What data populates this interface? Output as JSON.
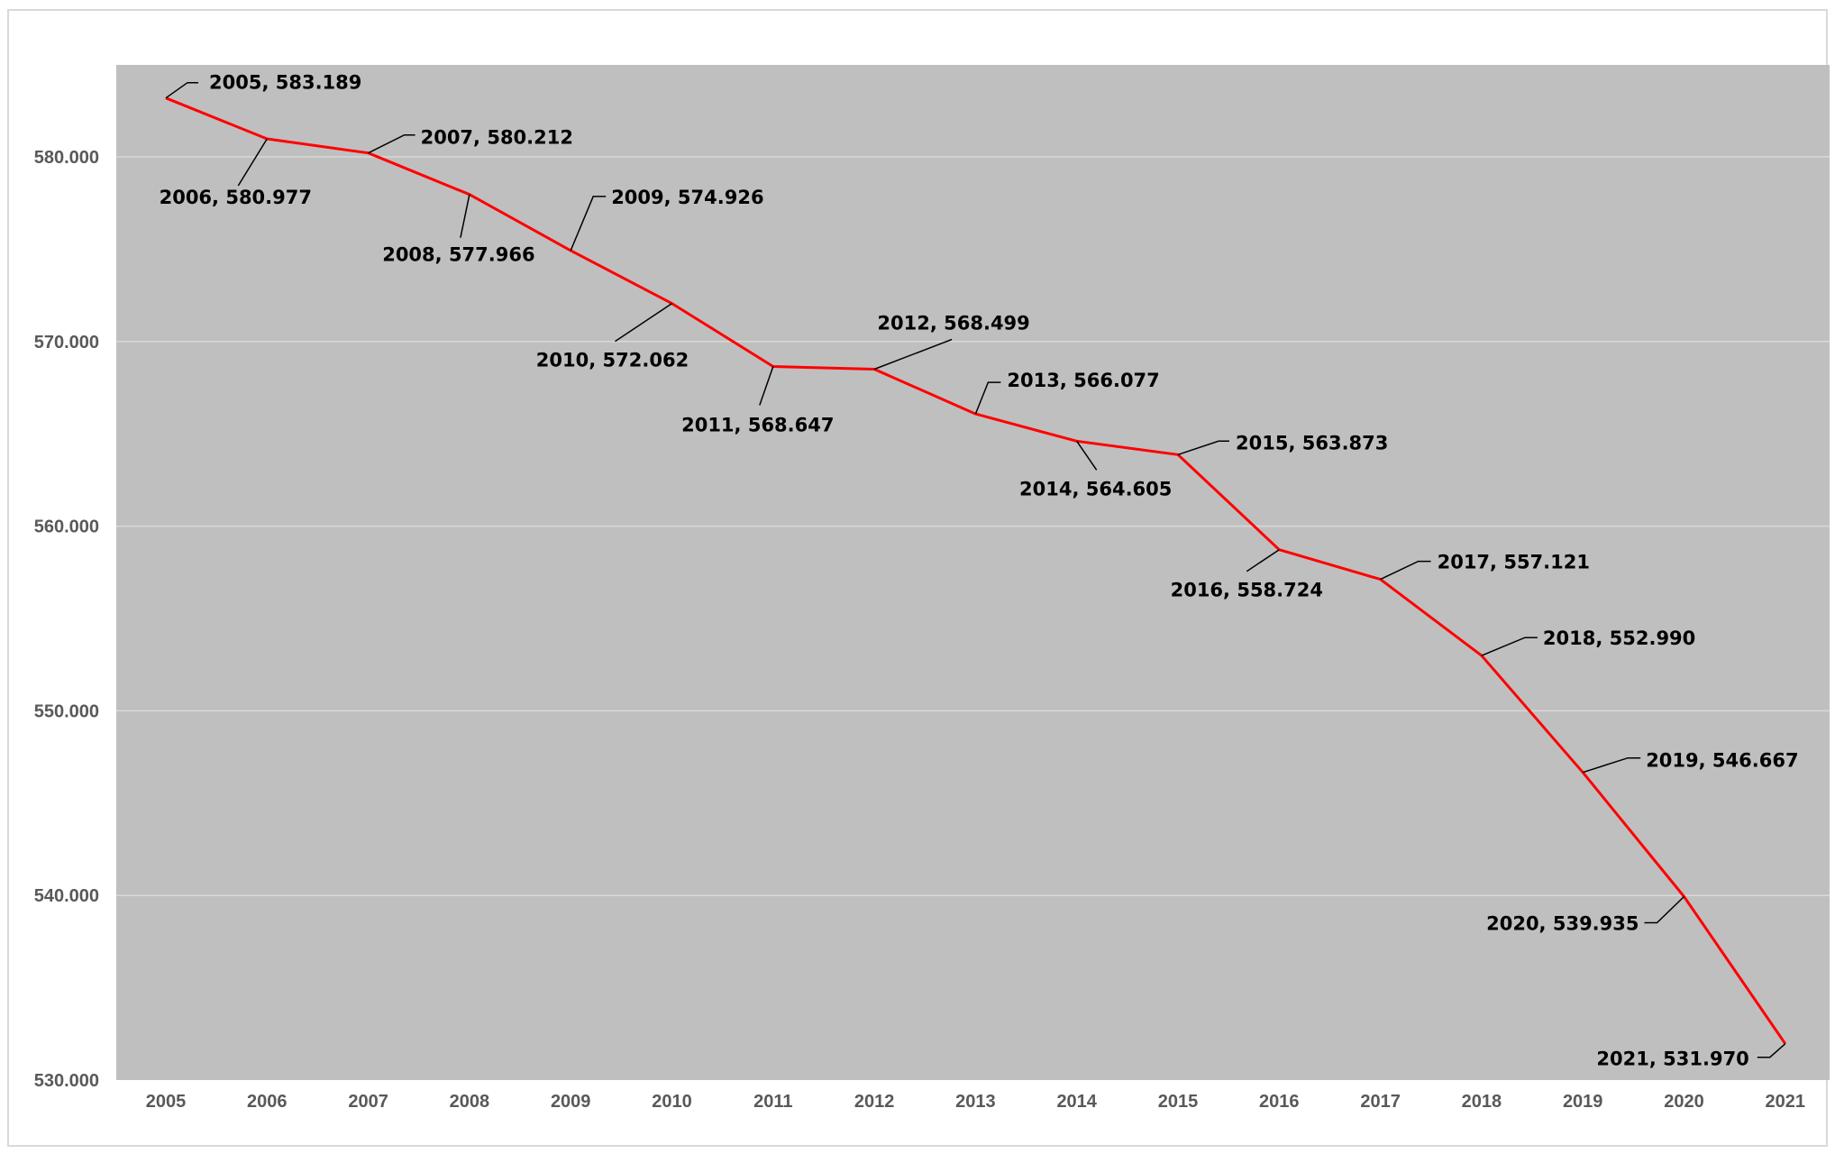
{
  "chart_data": {
    "type": "line",
    "title": "",
    "xlabel": "",
    "ylabel": "",
    "x": [
      "2005",
      "2006",
      "2007",
      "2008",
      "2009",
      "2010",
      "2011",
      "2012",
      "2013",
      "2014",
      "2015",
      "2016",
      "2017",
      "2018",
      "2019",
      "2020",
      "2021"
    ],
    "series": [
      {
        "values": [
          583189,
          580977,
          580212,
          577966,
          574926,
          572062,
          568647,
          568499,
          566077,
          564605,
          563873,
          558724,
          557121,
          552990,
          546667,
          539935,
          531970
        ],
        "labels": [
          "2005, 583.189",
          "2006, 580.977",
          "2007, 580.212",
          "2008, 577.966",
          "2009, 574.926",
          "2010, 572.062",
          "2011, 568.647",
          "2012, 568.499",
          "2013, 566.077",
          "2014, 564.605",
          "2015, 563.873",
          "2016, 558.724",
          "2017, 557.121",
          "2018, 552.990",
          "2019, 546.667",
          "2020, 539.935",
          "2021, 531.970"
        ]
      }
    ],
    "ylim": [
      530000,
      585000
    ],
    "y_ticks": [
      530000,
      540000,
      550000,
      560000,
      570000,
      580000
    ],
    "y_tick_labels": [
      "530.000",
      "540.000",
      "550.000",
      "560.000",
      "570.000",
      "580.000"
    ],
    "grid": true,
    "legend": "none",
    "colors": {
      "line": "#ff0000",
      "plot_background": "#bfbfbf",
      "gridline": "#d9d9d9",
      "tick_text": "#595959",
      "label_text": "#000000",
      "leader": "#000000"
    }
  }
}
